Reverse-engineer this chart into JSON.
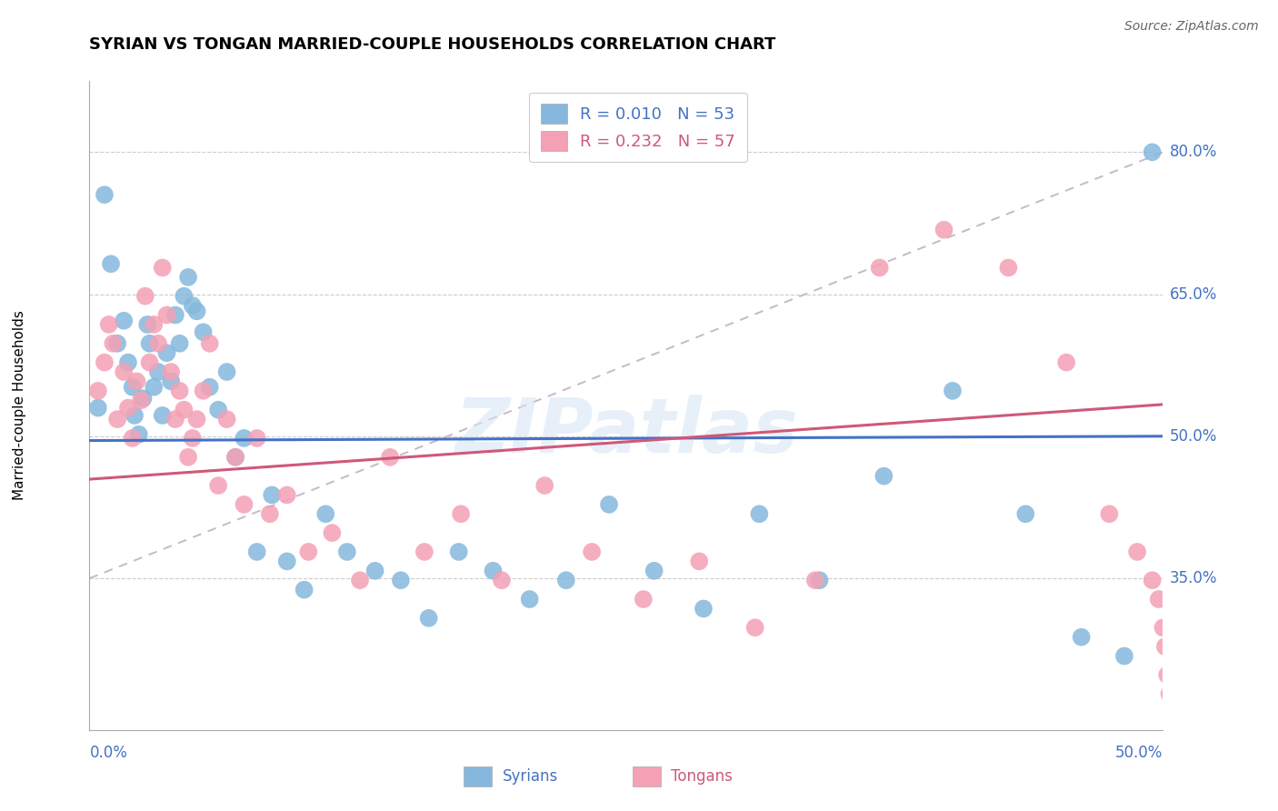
{
  "title": "SYRIAN VS TONGAN MARRIED-COUPLE HOUSEHOLDS CORRELATION CHART",
  "source": "Source: ZipAtlas.com",
  "ylabel": "Married-couple Households",
  "ytick_vals": [
    0.35,
    0.5,
    0.65,
    0.8
  ],
  "ytick_labels": [
    "35.0%",
    "50.0%",
    "65.0%",
    "80.0%"
  ],
  "xtick_labels": [
    "0.0%",
    "50.0%"
  ],
  "xlim": [
    0.0,
    0.5
  ],
  "ylim": [
    0.19,
    0.875
  ],
  "watermark": "ZIPatlas",
  "legend_syrian_R": "R = 0.010",
  "legend_syrian_N": "N = 53",
  "legend_tongan_R": "R = 0.232",
  "legend_tongan_N": "N = 57",
  "syrian_color": "#85B8DC",
  "tongan_color": "#F4A0B5",
  "syrian_line_color": "#4472C4",
  "tongan_line_color": "#D05878",
  "dashed_line_color": "#C8B8C8",
  "background_color": "#FFFFFF",
  "grid_color": "#CCCCCC",
  "syrians_x": [
    0.004,
    0.007,
    0.01,
    0.013,
    0.016,
    0.018,
    0.02,
    0.021,
    0.023,
    0.025,
    0.027,
    0.028,
    0.03,
    0.032,
    0.034,
    0.036,
    0.038,
    0.04,
    0.042,
    0.044,
    0.046,
    0.048,
    0.05,
    0.053,
    0.056,
    0.06,
    0.064,
    0.068,
    0.072,
    0.078,
    0.085,
    0.092,
    0.1,
    0.11,
    0.12,
    0.133,
    0.145,
    0.158,
    0.172,
    0.188,
    0.205,
    0.222,
    0.242,
    0.263,
    0.286,
    0.312,
    0.34,
    0.37,
    0.402,
    0.436,
    0.462,
    0.482,
    0.495
  ],
  "syrians_y": [
    0.53,
    0.755,
    0.682,
    0.598,
    0.622,
    0.578,
    0.552,
    0.522,
    0.502,
    0.54,
    0.618,
    0.598,
    0.552,
    0.568,
    0.522,
    0.588,
    0.558,
    0.628,
    0.598,
    0.648,
    0.668,
    0.638,
    0.632,
    0.61,
    0.552,
    0.528,
    0.568,
    0.478,
    0.498,
    0.378,
    0.438,
    0.368,
    0.338,
    0.418,
    0.378,
    0.358,
    0.348,
    0.308,
    0.378,
    0.358,
    0.328,
    0.348,
    0.428,
    0.358,
    0.318,
    0.418,
    0.348,
    0.458,
    0.548,
    0.418,
    0.288,
    0.268,
    0.8
  ],
  "tongans_x": [
    0.004,
    0.007,
    0.009,
    0.011,
    0.013,
    0.016,
    0.018,
    0.02,
    0.022,
    0.024,
    0.026,
    0.028,
    0.03,
    0.032,
    0.034,
    0.036,
    0.038,
    0.04,
    0.042,
    0.044,
    0.046,
    0.048,
    0.05,
    0.053,
    0.056,
    0.06,
    0.064,
    0.068,
    0.072,
    0.078,
    0.084,
    0.092,
    0.102,
    0.113,
    0.126,
    0.14,
    0.156,
    0.173,
    0.192,
    0.212,
    0.234,
    0.258,
    0.284,
    0.31,
    0.338,
    0.368,
    0.398,
    0.428,
    0.455,
    0.475,
    0.488,
    0.495,
    0.498,
    0.5,
    0.501,
    0.502,
    0.503
  ],
  "tongans_y": [
    0.548,
    0.578,
    0.618,
    0.598,
    0.518,
    0.568,
    0.53,
    0.498,
    0.558,
    0.538,
    0.648,
    0.578,
    0.618,
    0.598,
    0.678,
    0.628,
    0.568,
    0.518,
    0.548,
    0.528,
    0.478,
    0.498,
    0.518,
    0.548,
    0.598,
    0.448,
    0.518,
    0.478,
    0.428,
    0.498,
    0.418,
    0.438,
    0.378,
    0.398,
    0.348,
    0.478,
    0.378,
    0.418,
    0.348,
    0.448,
    0.378,
    0.328,
    0.368,
    0.298,
    0.348,
    0.678,
    0.718,
    0.678,
    0.578,
    0.418,
    0.378,
    0.348,
    0.328,
    0.298,
    0.278,
    0.248,
    0.228
  ]
}
